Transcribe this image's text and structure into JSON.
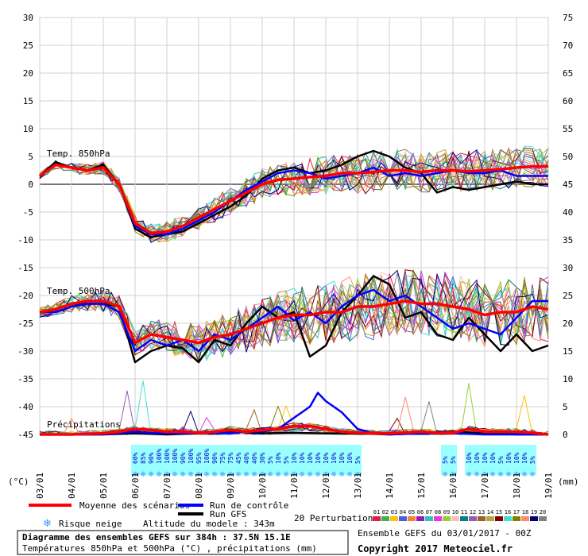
{
  "chart_data": {
    "type": "line",
    "title": "Diagramme des ensembles GEFS sur 384h : 37.5N 15.1E",
    "subtitle": "Températures 850hPa et 500hPa (°C) , précipitations (mm)",
    "run_label": "Ensemble GEFS du 03/01/2017 - 00Z",
    "copyright": "Copyright 2017 Meteociel.fr",
    "altitude_label": "Altitude du modele : 343m",
    "left_unit": "(°C)",
    "right_unit": "(mm)",
    "ylim_left": [
      -45,
      30
    ],
    "ylim_right": [
      0,
      75
    ],
    "left_ticks": [
      30,
      25,
      20,
      15,
      10,
      5,
      0,
      -5,
      -10,
      -15,
      -20,
      -25,
      -30,
      -35,
      -40,
      -45
    ],
    "right_ticks": [
      75,
      70,
      65,
      60,
      55,
      50,
      45,
      40,
      35,
      30,
      25,
      20,
      15,
      10,
      5,
      0
    ],
    "x_ticks": [
      "03/01",
      "04/01",
      "05/01",
      "06/01",
      "07/01",
      "08/01",
      "09/01",
      "10/01",
      "11/01",
      "12/01",
      "13/01",
      "14/01",
      "15/01",
      "16/01",
      "17/01",
      "18/01",
      "19/01"
    ],
    "panel_labels": {
      "t850": "Temp. 850hPa",
      "t500": "Temp. 500hPa",
      "precip": "Précipitations"
    },
    "legend": {
      "mean": "Moyenne des scénarios",
      "control": "Run de contrôle",
      "gfs": "Run GFS",
      "snow": "Risque neige",
      "perturbations": "20 Perturbations"
    },
    "colors": {
      "mean": "#ff0000",
      "control": "#0000ff",
      "gfs": "#000000",
      "snow_band": "#99ffff",
      "snow_text": "#0000cc"
    },
    "perturbation_labels": [
      "01",
      "02",
      "03",
      "04",
      "05",
      "06",
      "07",
      "08",
      "09",
      "10",
      "11",
      "12",
      "13",
      "14",
      "15",
      "16",
      "17",
      "18",
      "19",
      "20"
    ],
    "perturbation_colors": [
      "#e6194b",
      "#3cb44b",
      "#ffc107",
      "#4363d8",
      "#f58231",
      "#911eb4",
      "#2ec4b6",
      "#f032e6",
      "#9acd32",
      "#fabebe",
      "#008080",
      "#9b59b6",
      "#9a6324",
      "#b5a642",
      "#800000",
      "#40e0d0",
      "#808000",
      "#ff8c69",
      "#000075",
      "#808080"
    ],
    "snow_risk": [
      {
        "day": 3.0,
        "label": "60%"
      },
      {
        "day": 3.25,
        "label": "85%"
      },
      {
        "day": 3.5,
        "label": "90%"
      },
      {
        "day": 3.75,
        "label": "100%"
      },
      {
        "day": 4.0,
        "label": "100%"
      },
      {
        "day": 4.25,
        "label": "100%"
      },
      {
        "day": 4.5,
        "label": "90%"
      },
      {
        "day": 4.75,
        "label": "100%"
      },
      {
        "day": 5.0,
        "label": "95%"
      },
      {
        "day": 5.25,
        "label": "100%"
      },
      {
        "day": 5.5,
        "label": "90%"
      },
      {
        "day": 5.75,
        "label": "75%"
      },
      {
        "day": 6.0,
        "label": "75%"
      },
      {
        "day": 6.25,
        "label": "45%"
      },
      {
        "day": 6.5,
        "label": "40%"
      },
      {
        "day": 6.75,
        "label": "40%"
      },
      {
        "day": 7.0,
        "label": "30%"
      },
      {
        "day": 7.25,
        "label": "5%"
      },
      {
        "day": 7.5,
        "label": "10%"
      },
      {
        "day": 7.75,
        "label": "5%"
      },
      {
        "day": 8.0,
        "label": "10%"
      },
      {
        "day": 8.25,
        "label": "10%"
      },
      {
        "day": 8.5,
        "label": "10%"
      },
      {
        "day": 8.75,
        "label": "10%"
      },
      {
        "day": 9.0,
        "label": "10%"
      },
      {
        "day": 9.25,
        "label": "10%"
      },
      {
        "day": 9.5,
        "label": "10%"
      },
      {
        "day": 9.75,
        "label": "10%"
      },
      {
        "day": 10.0,
        "label": "5%"
      },
      {
        "day": 12.75,
        "label": "5%"
      },
      {
        "day": 13.0,
        "label": "5%"
      },
      {
        "day": 13.5,
        "label": "10%"
      },
      {
        "day": 13.75,
        "label": "10%"
      },
      {
        "day": 14.0,
        "label": "10%"
      },
      {
        "day": 14.25,
        "label": "10%"
      },
      {
        "day": 14.5,
        "label": "5%"
      },
      {
        "day": 14.75,
        "label": "10%"
      },
      {
        "day": 15.0,
        "label": "10%"
      },
      {
        "day": 15.25,
        "label": "10%"
      },
      {
        "day": 15.5,
        "label": "5%"
      }
    ],
    "t850": {
      "mean": [
        [
          0,
          1.5
        ],
        [
          0.5,
          3.5
        ],
        [
          1,
          3
        ],
        [
          1.5,
          2.5
        ],
        [
          2,
          3
        ],
        [
          2.5,
          0
        ],
        [
          3,
          -7
        ],
        [
          3.5,
          -8.8
        ],
        [
          4,
          -8.5
        ],
        [
          4.5,
          -7.5
        ],
        [
          5,
          -6
        ],
        [
          5.5,
          -4.5
        ],
        [
          6,
          -3
        ],
        [
          6.5,
          -1.5
        ],
        [
          7,
          0
        ],
        [
          7.5,
          0.8
        ],
        [
          8,
          1
        ],
        [
          8.5,
          1.3
        ],
        [
          9,
          1.5
        ],
        [
          9.5,
          2
        ],
        [
          10,
          2
        ],
        [
          10.5,
          2.2
        ],
        [
          11,
          2.5
        ],
        [
          11.5,
          2.5
        ],
        [
          12,
          2.2
        ],
        [
          12.5,
          2.5
        ],
        [
          13,
          2.5
        ],
        [
          13.5,
          2.3
        ],
        [
          14,
          2.5
        ],
        [
          14.5,
          2.7
        ],
        [
          15,
          3
        ],
        [
          15.5,
          3.2
        ],
        [
          16,
          3.2
        ]
      ],
      "control": [
        [
          0,
          1.5
        ],
        [
          0.5,
          3.5
        ],
        [
          1,
          3
        ],
        [
          1.5,
          2.5
        ],
        [
          2,
          3
        ],
        [
          2.5,
          0
        ],
        [
          3,
          -7.5
        ],
        [
          3.5,
          -9
        ],
        [
          4,
          -9
        ],
        [
          4.5,
          -8
        ],
        [
          5,
          -6.5
        ],
        [
          5.5,
          -5
        ],
        [
          6,
          -3
        ],
        [
          6.5,
          -1
        ],
        [
          7,
          0.5
        ],
        [
          7.5,
          2
        ],
        [
          8,
          2.5
        ],
        [
          8.5,
          2
        ],
        [
          9,
          1
        ],
        [
          9.5,
          1.5
        ],
        [
          10,
          2
        ],
        [
          10.5,
          3
        ],
        [
          11,
          1.5
        ],
        [
          11.5,
          2
        ],
        [
          12,
          1.5
        ],
        [
          12.5,
          2
        ],
        [
          13,
          2.5
        ],
        [
          13.5,
          2
        ],
        [
          14,
          2
        ],
        [
          14.5,
          2.5
        ],
        [
          15,
          1.5
        ],
        [
          15.5,
          1.5
        ],
        [
          16,
          1.5
        ]
      ],
      "gfs": [
        [
          0,
          1.5
        ],
        [
          0.5,
          4
        ],
        [
          1,
          3
        ],
        [
          1.5,
          2.5
        ],
        [
          2,
          3.5
        ],
        [
          2.5,
          0
        ],
        [
          3,
          -8
        ],
        [
          3.5,
          -9.5
        ],
        [
          4,
          -9
        ],
        [
          4.5,
          -8.5
        ],
        [
          5,
          -7
        ],
        [
          5.5,
          -5.5
        ],
        [
          6,
          -4
        ],
        [
          6.5,
          -2
        ],
        [
          7,
          1
        ],
        [
          7.5,
          2.5
        ],
        [
          8,
          3
        ],
        [
          8.5,
          2
        ],
        [
          9,
          2.5
        ],
        [
          9.5,
          3.5
        ],
        [
          10,
          5
        ],
        [
          10.5,
          6
        ],
        [
          11,
          5
        ],
        [
          11.5,
          3
        ],
        [
          12,
          2
        ],
        [
          12.5,
          -1.5
        ],
        [
          13,
          -0.5
        ],
        [
          13.5,
          -1
        ],
        [
          14,
          -0.5
        ],
        [
          14.5,
          0
        ],
        [
          15,
          0.5
        ],
        [
          15.5,
          0
        ],
        [
          16,
          0
        ]
      ]
    },
    "t500": {
      "mean": [
        [
          0,
          -23
        ],
        [
          0.5,
          -22.5
        ],
        [
          1,
          -21.5
        ],
        [
          1.5,
          -21
        ],
        [
          2,
          -21
        ],
        [
          2.5,
          -22
        ],
        [
          3,
          -28.5
        ],
        [
          3.5,
          -27
        ],
        [
          4,
          -27.5
        ],
        [
          4.5,
          -28
        ],
        [
          5,
          -28.5
        ],
        [
          5.5,
          -27.5
        ],
        [
          6,
          -27
        ],
        [
          6.5,
          -26
        ],
        [
          7,
          -25
        ],
        [
          7.5,
          -24
        ],
        [
          8,
          -23.5
        ],
        [
          8.5,
          -23.5
        ],
        [
          9,
          -23
        ],
        [
          9.5,
          -23
        ],
        [
          10,
          -22
        ],
        [
          10.5,
          -22
        ],
        [
          11,
          -21.5
        ],
        [
          11.5,
          -21
        ],
        [
          12,
          -21.5
        ],
        [
          12.5,
          -21.5
        ],
        [
          13,
          -22
        ],
        [
          13.5,
          -22.5
        ],
        [
          14,
          -23.5
        ],
        [
          14.5,
          -23
        ],
        [
          15,
          -23
        ],
        [
          15.5,
          -22
        ],
        [
          16,
          -22.5
        ]
      ],
      "control": [
        [
          0,
          -23
        ],
        [
          0.5,
          -23
        ],
        [
          1,
          -22
        ],
        [
          1.5,
          -21.5
        ],
        [
          2,
          -21.5
        ],
        [
          2.5,
          -23
        ],
        [
          3,
          -30
        ],
        [
          3.5,
          -28
        ],
        [
          4,
          -29
        ],
        [
          4.5,
          -28
        ],
        [
          5,
          -30
        ],
        [
          5.5,
          -27
        ],
        [
          6,
          -28
        ],
        [
          6.5,
          -26
        ],
        [
          7,
          -24
        ],
        [
          7.5,
          -22
        ],
        [
          8,
          -24.5
        ],
        [
          8.5,
          -23
        ],
        [
          9,
          -25
        ],
        [
          9.5,
          -22
        ],
        [
          10,
          -20
        ],
        [
          10.5,
          -19
        ],
        [
          11,
          -21
        ],
        [
          11.5,
          -20
        ],
        [
          12,
          -22
        ],
        [
          12.5,
          -24
        ],
        [
          13,
          -26
        ],
        [
          13.5,
          -25
        ],
        [
          14,
          -26
        ],
        [
          14.5,
          -27
        ],
        [
          15,
          -24
        ],
        [
          15.5,
          -21
        ],
        [
          16,
          -21
        ]
      ],
      "gfs": [
        [
          0,
          -23
        ],
        [
          0.5,
          -22.5
        ],
        [
          1,
          -21.5
        ],
        [
          1.5,
          -21.5
        ],
        [
          2,
          -21.5
        ],
        [
          2.5,
          -22
        ],
        [
          3,
          -32
        ],
        [
          3.5,
          -30
        ],
        [
          4,
          -29
        ],
        [
          4.5,
          -29.5
        ],
        [
          5,
          -32
        ],
        [
          5.5,
          -28
        ],
        [
          6,
          -29
        ],
        [
          6.5,
          -25
        ],
        [
          7,
          -22
        ],
        [
          7.5,
          -24
        ],
        [
          8,
          -23
        ],
        [
          8.5,
          -31
        ],
        [
          9,
          -29
        ],
        [
          9.5,
          -23
        ],
        [
          10,
          -20
        ],
        [
          10.5,
          -16.5
        ],
        [
          11,
          -18
        ],
        [
          11.5,
          -24
        ],
        [
          12,
          -23
        ],
        [
          12.5,
          -27
        ],
        [
          13,
          -28
        ],
        [
          13.5,
          -24
        ],
        [
          14,
          -27
        ],
        [
          14.5,
          -30
        ],
        [
          15,
          -27
        ],
        [
          15.5,
          -30
        ],
        [
          16,
          -29
        ]
      ]
    },
    "precip": {
      "mean": [
        [
          0,
          0
        ],
        [
          1,
          0
        ],
        [
          2,
          0.2
        ],
        [
          2.5,
          0.5
        ],
        [
          3,
          1
        ],
        [
          3.5,
          0.8
        ],
        [
          4,
          0.5
        ],
        [
          4.5,
          0.5
        ],
        [
          5,
          0.3
        ],
        [
          5.5,
          0.5
        ],
        [
          6,
          0.8
        ],
        [
          6.5,
          0.5
        ],
        [
          7,
          0.8
        ],
        [
          7.5,
          1
        ],
        [
          8,
          1.5
        ],
        [
          8.5,
          1.5
        ],
        [
          9,
          1
        ],
        [
          9.5,
          0.5
        ],
        [
          10,
          0.3
        ],
        [
          10.5,
          0.2
        ],
        [
          11,
          0.2
        ],
        [
          12,
          0.5
        ],
        [
          12.5,
          0.3
        ],
        [
          13,
          0.3
        ],
        [
          13.5,
          1
        ],
        [
          14,
          0.5
        ],
        [
          14.5,
          0.5
        ],
        [
          15,
          0.5
        ],
        [
          15.5,
          0.3
        ],
        [
          16,
          0
        ]
      ],
      "control": [
        [
          0,
          0
        ],
        [
          1,
          0
        ],
        [
          2,
          0
        ],
        [
          3,
          0.5
        ],
        [
          3.5,
          0.3
        ],
        [
          4,
          0.2
        ],
        [
          5,
          0.2
        ],
        [
          5.5,
          0.3
        ],
        [
          6,
          0.2
        ],
        [
          6.5,
          0.5
        ],
        [
          7,
          0.5
        ],
        [
          7.5,
          1
        ],
        [
          8,
          3
        ],
        [
          8.5,
          5
        ],
        [
          8.75,
          7.5
        ],
        [
          9,
          6
        ],
        [
          9.5,
          4
        ],
        [
          10,
          1
        ],
        [
          10.5,
          0.2
        ],
        [
          11,
          0
        ],
        [
          12,
          0.2
        ],
        [
          13,
          0.2
        ],
        [
          14,
          0
        ],
        [
          15,
          0
        ],
        [
          16,
          0
        ]
      ],
      "gfs": [
        [
          0,
          0
        ],
        [
          1,
          0
        ],
        [
          2,
          0
        ],
        [
          3,
          0.2
        ],
        [
          4,
          0
        ],
        [
          5,
          0.2
        ],
        [
          6,
          0.5
        ],
        [
          7,
          0.2
        ],
        [
          8,
          0.3
        ],
        [
          9,
          0.2
        ],
        [
          10,
          0.2
        ],
        [
          11,
          0
        ],
        [
          12,
          0.2
        ],
        [
          13,
          0.5
        ],
        [
          14,
          0.2
        ],
        [
          15,
          0
        ],
        [
          16,
          0
        ]
      ]
    },
    "days": 16,
    "xlabel": "",
    "ylabel": ""
  }
}
